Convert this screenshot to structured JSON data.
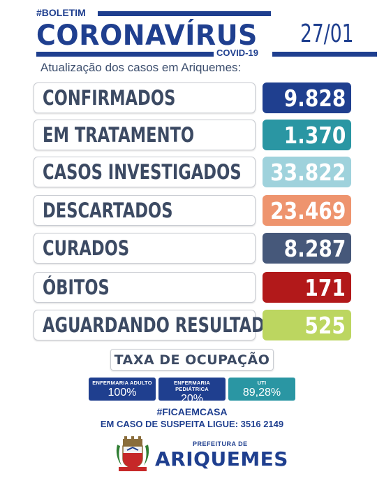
{
  "header": {
    "boletim": "#BOLETIM",
    "title": "CORONAVÍRUS",
    "covid": "COVID-19",
    "date": "27/01",
    "subtitle": "Atualização dos casos em Ariquemes:"
  },
  "rows": [
    {
      "label": "CONFIRMADOS",
      "value": "9.828",
      "color": "#1f3f8f"
    },
    {
      "label": "EM TRATAMENTO",
      "value": "1.370",
      "color": "#2a96a3"
    },
    {
      "label": "CASOS INVESTIGADOS",
      "value": "33.822",
      "color": "#9fd2dc"
    },
    {
      "label": "DESCARTADOS",
      "value": "23.469",
      "color": "#ee946e"
    },
    {
      "label": "CURADOS",
      "value": "8.287",
      "color": "#46587a"
    },
    {
      "label": "ÓBITOS",
      "value": "171",
      "color": "#b2191a"
    },
    {
      "label": "AGUARDANDO RESULTADO",
      "value": "525",
      "color": "#bcd660"
    }
  ],
  "occupancy": {
    "title": "TAXA DE OCUPAÇÃO",
    "items": [
      {
        "label": "ENFERMARIA ADULTO",
        "value": "100%",
        "color": "#1f3f8f"
      },
      {
        "label": "ENFERMARIA PEDIÁTRICA",
        "value": "20%",
        "color": "#1f3f8f"
      },
      {
        "label": "UTI",
        "value": "89,28%",
        "color": "#2a96a3"
      }
    ]
  },
  "footer": {
    "hashtag": "#FICAEMCASA",
    "phone": "EM CASO DE SUSPEITA LIGUE: 3516 2149",
    "prefeitura": "PREFEITURA DE",
    "city": "ARIQUEMES",
    "crest_icon": "city-crest-icon"
  }
}
